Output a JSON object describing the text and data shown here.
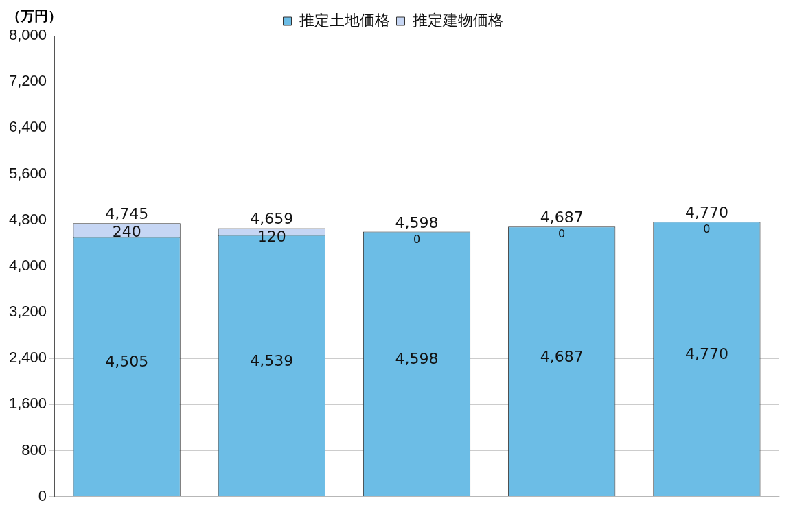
{
  "chart_data": {
    "type": "bar",
    "stacked": true,
    "ylabel": "（万円）",
    "categories": [
      null,
      null,
      null,
      null,
      null
    ],
    "series": [
      {
        "name": "推定土地価格",
        "color": "#6cbde6",
        "values": [
          4505,
          4539,
          4598,
          4687,
          4770
        ],
        "value_labels": [
          "4,505",
          "4,539",
          "4,598",
          "4,687",
          "4,770"
        ]
      },
      {
        "name": "推定建物価格",
        "color": "#c6d6f4",
        "values": [
          240,
          120,
          0,
          0,
          0
        ],
        "value_labels": [
          "240",
          "120",
          "0",
          "0",
          "0"
        ]
      }
    ],
    "totals": [
      "4,745",
      "4,659",
      "4,598",
      "4,687",
      "4,770"
    ],
    "ylim": [
      0,
      8000
    ],
    "yticks": [
      0,
      800,
      {
        "value": 1600,
        "label": "1,600"
      },
      {
        "value": 2400,
        "label": "2,400"
      },
      {
        "value": 3200,
        "label": "3,200"
      },
      {
        "value": 4000,
        "label": "4,000"
      },
      {
        "value": 4800,
        "label": "4,800"
      },
      {
        "value": 5600,
        "label": "5,600"
      },
      {
        "value": 6400,
        "label": "6,400"
      },
      {
        "value": 7200,
        "label": "7,200"
      },
      {
        "value": 8000,
        "label": "8,000"
      }
    ],
    "grid": "y",
    "legend": "top"
  }
}
